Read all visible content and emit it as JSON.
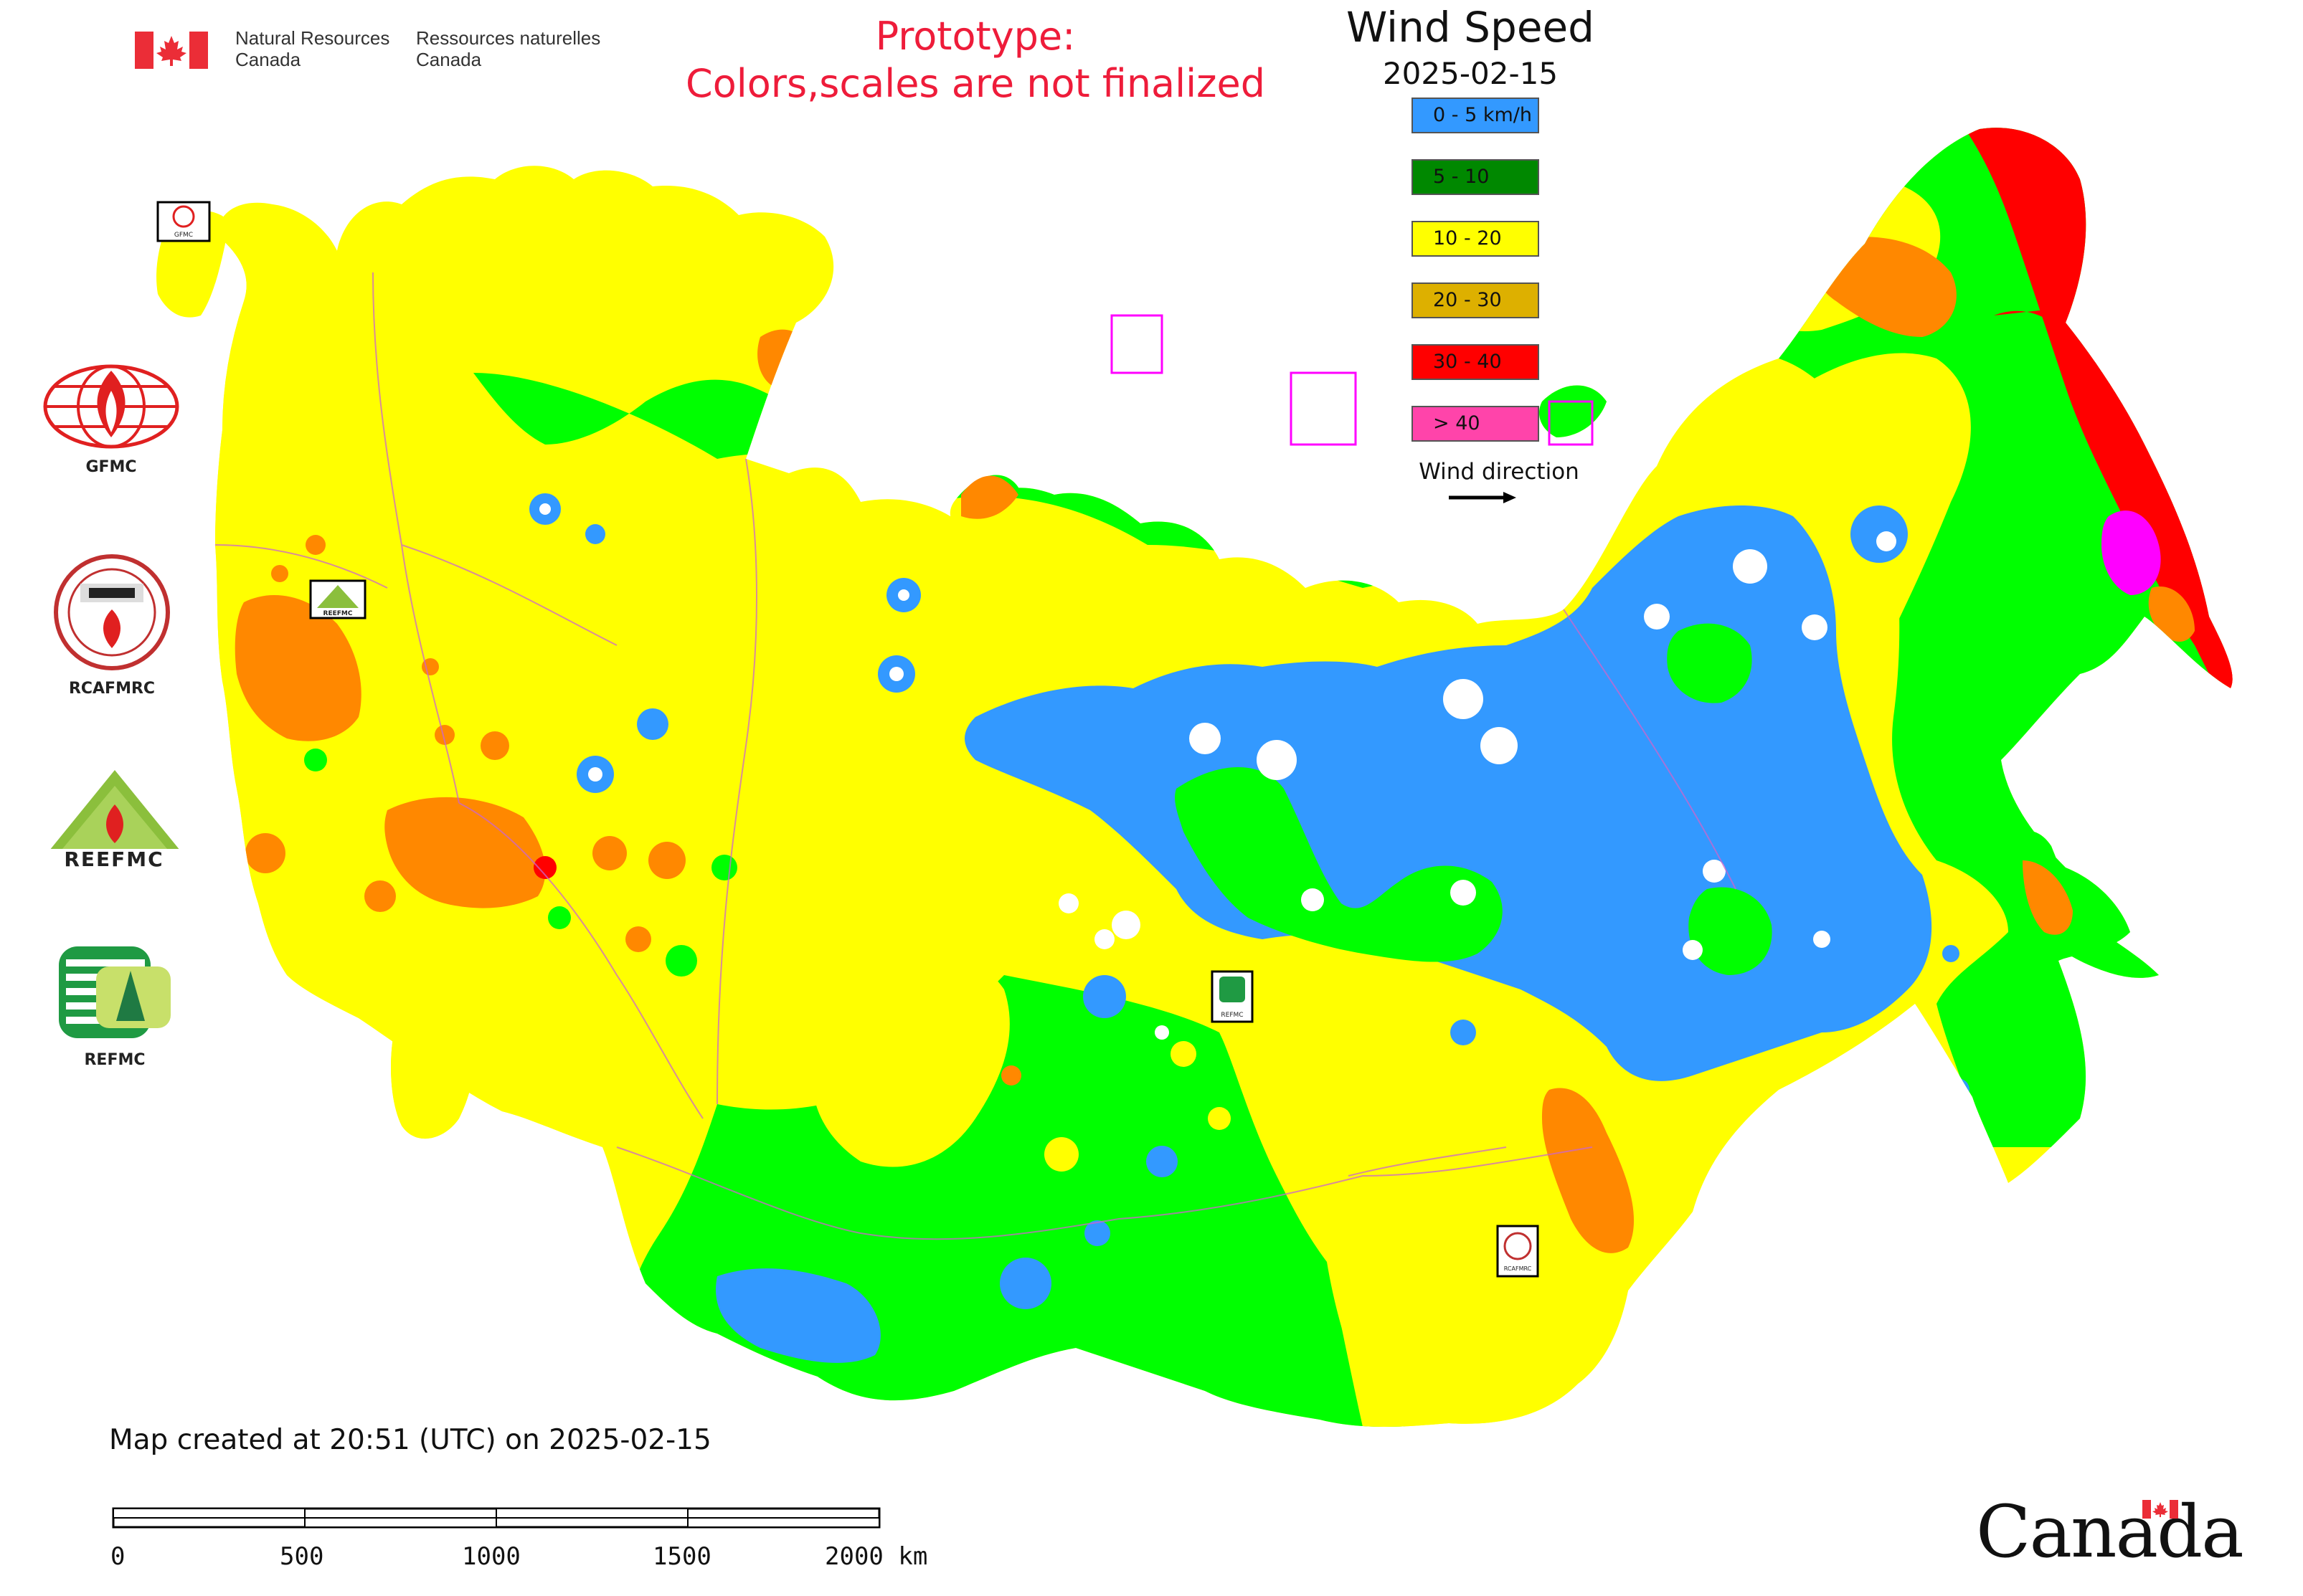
{
  "header": {
    "agency_en": "Natural Resources\nCanada",
    "agency_fr": "Ressources naturelles\nCanada",
    "prototype_line1": "Prototype:",
    "prototype_line2": "Colors,scales are not finalized",
    "title": "Wind Speed",
    "date": "2025-02-15"
  },
  "legend": {
    "items": [
      {
        "label": "0 - 5 km/h",
        "color": "#3399ff"
      },
      {
        "label": "5 - 10",
        "color": "#008800"
      },
      {
        "label": "10 - 20",
        "color": "#ffff00"
      },
      {
        "label": "20 - 30",
        "color": "#ddb000"
      },
      {
        "label": "30 - 40",
        "color": "#ff0000"
      },
      {
        "label": "> 40",
        "color": "#ff44aa"
      }
    ],
    "wind_direction_label": "Wind direction"
  },
  "organizations": [
    {
      "label": "GFMC",
      "icon": "gfmc-logo-icon"
    },
    {
      "label": "RCAFMRC",
      "icon": "rcafmrc-logo-icon"
    },
    {
      "label": "",
      "icon": "reefmc-logo-icon",
      "wordmark": "REEFMC"
    },
    {
      "label": "REFMC",
      "icon": "refmc-logo-icon"
    }
  ],
  "map_markers": [
    {
      "icon": "gfmc-marker-icon",
      "text": "GFMC"
    },
    {
      "icon": "reefmc-marker-icon",
      "text": "REEFMC"
    },
    {
      "icon": "refmc-marker-icon",
      "text": "REFMC"
    },
    {
      "icon": "rcafmrc-marker-icon",
      "text": "RCAFMRC"
    }
  ],
  "footer": {
    "created": "Map created at 20:51 (UTC) on 2025-02-15",
    "scale_ticks": [
      "0",
      "500",
      "1000",
      "1500",
      "2000 km"
    ],
    "wordmark": "Canada"
  },
  "colors": {
    "calm": "#3399ff",
    "light": "#00ff00",
    "moderate": "#ffff00",
    "fresh": "#ff8800",
    "strong": "#ff0000",
    "gale": "#ff00ff",
    "boundary": "#cc66cc",
    "canada_red": "#eb2d37"
  }
}
